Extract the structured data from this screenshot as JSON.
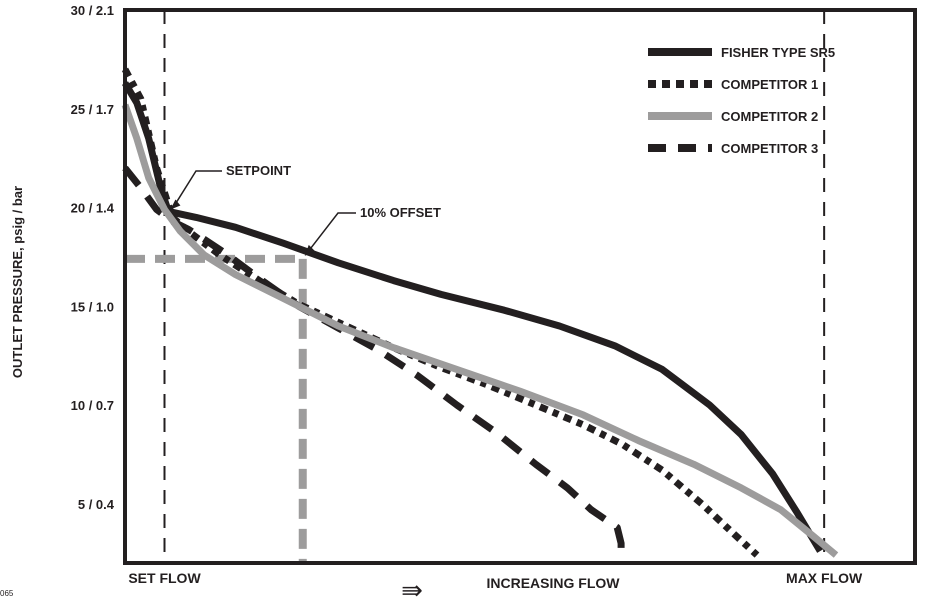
{
  "figure_id": "065",
  "chart_data": {
    "type": "line",
    "title": "",
    "ylabel": "OUTLET PRESSURE, psig / bar",
    "xlabel": "INCREASING FLOW",
    "x_arrow": "⇛",
    "ylim": [
      2,
      30
    ],
    "xlim": [
      0,
      100
    ],
    "y_ticks": [
      {
        "value": 30,
        "label": "30 / 2.1"
      },
      {
        "value": 25,
        "label": "25 / 1.7"
      },
      {
        "value": 20,
        "label": "20 / 1.4"
      },
      {
        "value": 15,
        "label": "15 / 1.0"
      },
      {
        "value": 10,
        "label": "10 / 0.7"
      },
      {
        "value": 5,
        "label": "5 / 0.4"
      }
    ],
    "x_markers": [
      {
        "name": "set-flow",
        "x": 5,
        "label": "SET FLOW"
      },
      {
        "name": "max-flow",
        "x": 88.5,
        "label": "MAX FLOW"
      }
    ],
    "offset_pressure": 17.4,
    "offset_flow": 22.5,
    "annotations": [
      {
        "name": "setpoint",
        "text": "SETPOINT",
        "x": 5.5,
        "y": 19.8
      },
      {
        "name": "offset",
        "text": "10% OFFSET",
        "x": 22.5,
        "y": 17.4
      }
    ],
    "legend_position": "top-right",
    "series": [
      {
        "name": "FISHER TYPE SR5",
        "color": "#231f20",
        "style": "solid",
        "x": [
          0,
          1.5,
          3,
          4.5,
          5.5,
          9,
          14,
          20,
          27,
          34,
          40,
          48,
          55,
          62,
          68,
          74,
          78,
          82,
          85,
          88
        ],
        "y": [
          26.3,
          25.3,
          23.5,
          21.0,
          19.8,
          19.5,
          19.0,
          18.2,
          17.2,
          16.3,
          15.6,
          14.8,
          14.0,
          13.0,
          11.8,
          10.0,
          8.5,
          6.5,
          4.6,
          2.6
        ]
      },
      {
        "name": "COMPETITOR 1",
        "color": "#231f20",
        "style": "dotted",
        "x": [
          0,
          2,
          4,
          6,
          8,
          12,
          17,
          22,
          28,
          34,
          40,
          46,
          52,
          58,
          63,
          68,
          73,
          77,
          80
        ],
        "y": [
          27.0,
          25.5,
          22.0,
          19.5,
          18.8,
          17.6,
          16.3,
          15.1,
          14.0,
          12.9,
          11.9,
          11.0,
          10.0,
          9.0,
          8.0,
          6.7,
          5.0,
          3.5,
          2.4
        ]
      },
      {
        "name": "COMPETITOR 2",
        "color": "#9d9c9c",
        "style": "solid",
        "x": [
          0,
          1.5,
          3,
          5,
          7,
          10,
          14,
          20,
          27,
          34,
          42,
          50,
          58,
          65,
          72,
          78,
          83,
          87,
          90
        ],
        "y": [
          25.2,
          23.5,
          21.5,
          19.9,
          18.8,
          17.6,
          16.6,
          15.4,
          14.0,
          12.9,
          11.8,
          10.7,
          9.5,
          8.2,
          7.0,
          5.8,
          4.7,
          3.4,
          2.4
        ]
      },
      {
        "name": "COMPETITOR 3",
        "color": "#231f20",
        "style": "dashed",
        "x": [
          0,
          2,
          4,
          6,
          8,
          10,
          13,
          17,
          22,
          27,
          32,
          37,
          42,
          47,
          52,
          56,
          59,
          62.3,
          62.8,
          62.8
        ],
        "y": [
          22.0,
          21.0,
          19.9,
          19.3,
          18.9,
          18.4,
          17.6,
          16.4,
          15.0,
          13.9,
          12.8,
          11.5,
          10.0,
          8.6,
          7.0,
          5.8,
          4.7,
          3.8,
          3.0,
          2.2
        ]
      }
    ]
  }
}
